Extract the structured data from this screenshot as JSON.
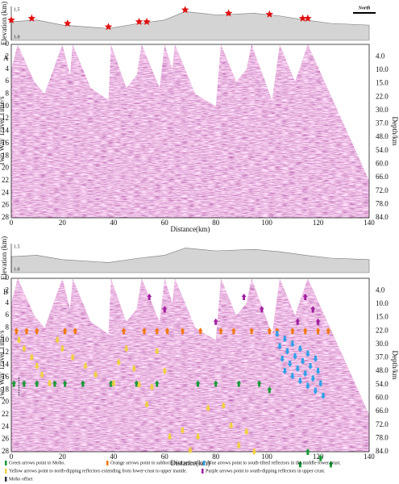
{
  "panel_a": {
    "label": "A",
    "elevation_label": "Elevation (km)",
    "elevation_ticks": [
      "1.5",
      "1.0"
    ],
    "north": "North",
    "time_label": "Two Way Travel Time/s",
    "time_ticks": [
      "0",
      "2",
      "4",
      "6",
      "8",
      "10",
      "12",
      "14",
      "16",
      "18",
      "20",
      "22",
      "24",
      "26",
      "28"
    ],
    "depth_label": "Depth/km",
    "depth_ticks": [
      "4.0",
      "10.0",
      "15.0",
      "22.0",
      "30.0",
      "37.0",
      "48.0",
      "54.0",
      "60.0",
      "66.0",
      "72.0",
      "78.0",
      "84.0"
    ],
    "distance_label": "Distance(km)",
    "distance_ticks": [
      "0",
      "20",
      "40",
      "60",
      "80",
      "100",
      "120",
      "140"
    ]
  },
  "panel_b": {
    "label": "B",
    "elevation_label": "Elevation (km)",
    "elevation_ticks": [
      "1.5",
      "1.0"
    ],
    "time_label": "Two Way Travel Time/s",
    "time_ticks": [
      "0",
      "2",
      "4",
      "6",
      "8",
      "10",
      "12",
      "14",
      "16",
      "18",
      "20",
      "22",
      "24",
      "26",
      "28"
    ],
    "depth_label": "Depth/km",
    "depth_ticks": [
      "4.0",
      "10.0",
      "15.0",
      "22.0",
      "30.0",
      "37.0",
      "48.0",
      "54.0",
      "60.0",
      "66.0",
      "72.0",
      "78.0",
      "84.0"
    ],
    "distance_label": "Distance(km)",
    "distance_ticks": [
      "0",
      "20",
      "40",
      "60",
      "80",
      "100",
      "120",
      "140"
    ]
  },
  "legend": [
    "Green arrows point to Moho.",
    "Orange arrows point to subhorizontal reflectors.",
    "Blue arrows point to south-tilted reflectors in the middle-lower crust.",
    "Yellow arrows point to north-dipping reflectors extending from lower-crust to upper mantle.",
    "Purple arrows point to south-dipping reflectors in upper crust.",
    "Moho offset"
  ]
}
